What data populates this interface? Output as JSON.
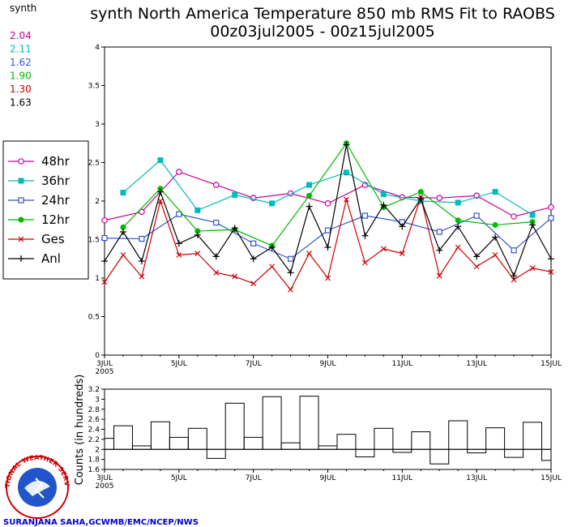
{
  "title": {
    "line1": "synth North America Temperature 850 mb RMS Fit to RAOBS",
    "line2": "00z03jul2005 - 00z15jul2005"
  },
  "stats": {
    "header": "synth",
    "values": [
      {
        "text": "2.04",
        "color": "#cc0099"
      },
      {
        "text": "2.11",
        "color": "#00bbbb"
      },
      {
        "text": "1.62",
        "color": "#3355cc"
      },
      {
        "text": "1.90",
        "color": "#00bb00"
      },
      {
        "text": "1.30",
        "color": "#cc0000"
      },
      {
        "text": "1.63",
        "color": "#000000"
      }
    ]
  },
  "legend": [
    {
      "label": "48hr",
      "color": "#cc0099",
      "marker": "open-circle"
    },
    {
      "label": "36hr",
      "color": "#00bbbb",
      "marker": "filled-square"
    },
    {
      "label": "24hr",
      "color": "#3355cc",
      "marker": "open-square"
    },
    {
      "label": "12hr",
      "color": "#00bb00",
      "marker": "filled-circle"
    },
    {
      "label": "Ges",
      "color": "#cc0000",
      "marker": "x"
    },
    {
      "label": "Anl",
      "color": "#000000",
      "marker": "plus"
    }
  ],
  "credit": "SURANJANA SAHA,GCWMB/EMC/NCEP/NWS",
  "logo_text": "NATIONAL WEATHER SERVICE",
  "chart_data": [
    {
      "type": "line",
      "xlim": [
        0,
        24
      ],
      "ylim": [
        0,
        4
      ],
      "yticks": [
        "0",
        "0.5",
        "1",
        "1.5",
        "2",
        "2.5",
        "3",
        "3.5",
        "4"
      ],
      "xticks": [
        {
          "x": 0,
          "label": "3JUL",
          "sub": "2005"
        },
        {
          "x": 4,
          "label": "5JUL"
        },
        {
          "x": 8,
          "label": "7JUL"
        },
        {
          "x": 12,
          "label": "9JUL"
        },
        {
          "x": 16,
          "label": "11JUL"
        },
        {
          "x": 20,
          "label": "13JUL"
        },
        {
          "x": 24,
          "label": "15JUL"
        }
      ],
      "series": [
        {
          "name": "48hr",
          "color": "#cc0099",
          "marker": "open-circle",
          "x": [
            0,
            2,
            4,
            6,
            8,
            10,
            12,
            14,
            16,
            18,
            20,
            22,
            24
          ],
          "values": [
            1.75,
            1.86,
            2.38,
            2.21,
            2.04,
            2.1,
            1.97,
            2.21,
            2.05,
            2.04,
            2.07,
            1.8,
            1.92
          ]
        },
        {
          "name": "36hr",
          "color": "#00bbbb",
          "marker": "filled-square",
          "x": [
            1,
            3,
            5,
            7,
            9,
            11,
            13,
            15,
            17,
            19,
            21,
            23
          ],
          "values": [
            2.11,
            2.53,
            1.88,
            2.08,
            1.97,
            2.21,
            2.37,
            2.09,
            2.0,
            1.98,
            2.12,
            1.82
          ]
        },
        {
          "name": "24hr",
          "color": "#3355cc",
          "marker": "open-square",
          "x": [
            0,
            2,
            4,
            6,
            8,
            10,
            12,
            14,
            16,
            18,
            20,
            22,
            24
          ],
          "values": [
            1.52,
            1.51,
            1.83,
            1.72,
            1.45,
            1.25,
            1.62,
            1.81,
            1.73,
            1.6,
            1.81,
            1.36,
            1.78
          ]
        },
        {
          "name": "12hr",
          "color": "#00bb00",
          "marker": "filled-circle",
          "x": [
            1,
            3,
            5,
            7,
            9,
            11,
            13,
            15,
            17,
            19,
            21,
            23
          ],
          "values": [
            1.66,
            2.16,
            1.61,
            1.63,
            1.42,
            2.07,
            2.75,
            1.92,
            2.12,
            1.75,
            1.69,
            1.73
          ]
        },
        {
          "name": "Ges",
          "color": "#cc0000",
          "marker": "x",
          "x": [
            0,
            1,
            2,
            3,
            4,
            5,
            6,
            7,
            8,
            9,
            10,
            11,
            12,
            13,
            14,
            15,
            16,
            17,
            18,
            19,
            20,
            21,
            22,
            23,
            24
          ],
          "values": [
            0.95,
            1.3,
            1.02,
            2.0,
            1.3,
            1.32,
            1.07,
            1.02,
            0.93,
            1.15,
            0.85,
            1.32,
            1.0,
            2.02,
            1.2,
            1.38,
            1.32,
            2.05,
            1.03,
            1.4,
            1.15,
            1.3,
            0.98,
            1.13,
            1.08
          ]
        },
        {
          "name": "Anl",
          "color": "#000000",
          "marker": "plus",
          "x": [
            0,
            1,
            2,
            3,
            4,
            5,
            6,
            7,
            8,
            9,
            10,
            11,
            12,
            13,
            14,
            15,
            16,
            17,
            18,
            19,
            20,
            21,
            22,
            23,
            24
          ],
          "values": [
            1.22,
            1.6,
            1.22,
            2.12,
            1.45,
            1.56,
            1.28,
            1.65,
            1.25,
            1.4,
            1.07,
            1.93,
            1.4,
            2.73,
            1.55,
            1.95,
            1.67,
            2.03,
            1.36,
            1.67,
            1.28,
            1.53,
            1.03,
            1.69,
            1.25
          ]
        }
      ]
    },
    {
      "type": "bar",
      "ylabel": "Counts (in hundreds)",
      "xlim": [
        0,
        24
      ],
      "ylim": [
        1.6,
        3.2
      ],
      "baseline": 2.0,
      "yticks": [
        "1.6",
        "1.8",
        "2",
        "2.2",
        "2.4",
        "2.6",
        "2.8",
        "3",
        "3.2"
      ],
      "xticks": [
        {
          "x": 0,
          "label": "3JUL",
          "sub": "2005"
        },
        {
          "x": 4,
          "label": "5JUL"
        },
        {
          "x": 8,
          "label": "7JUL"
        },
        {
          "x": 12,
          "label": "9JUL"
        },
        {
          "x": 16,
          "label": "11JUL"
        },
        {
          "x": 20,
          "label": "13JUL"
        },
        {
          "x": 24,
          "label": "15JUL"
        }
      ],
      "x": [
        0,
        1,
        2,
        3,
        4,
        5,
        6,
        7,
        8,
        9,
        10,
        11,
        12,
        13,
        14,
        15,
        16,
        17,
        18,
        19,
        20,
        21,
        22,
        23,
        24
      ],
      "values": [
        2.22,
        2.47,
        2.07,
        2.55,
        2.24,
        2.42,
        1.82,
        2.92,
        2.24,
        3.05,
        2.13,
        3.06,
        2.07,
        2.3,
        1.85,
        2.42,
        1.94,
        2.35,
        1.71,
        2.57,
        1.93,
        2.43,
        1.84,
        2.54,
        1.78
      ]
    }
  ]
}
